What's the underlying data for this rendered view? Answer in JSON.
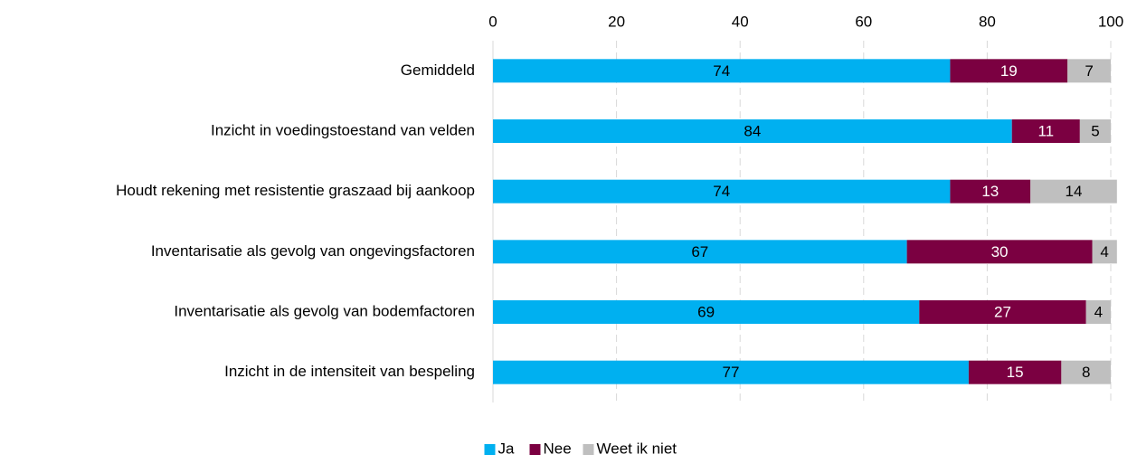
{
  "chart_data": {
    "type": "bar",
    "orientation": "horizontal",
    "stacked": true,
    "categories": [
      "Gemiddeld",
      "Inzicht in voedingstoestand van velden",
      "Houdt rekening met resistentie graszaad bij aankoop",
      "Inventarisatie als gevolg van ongevingsfactoren",
      "Inventarisatie als gevolg van bodemfactoren",
      "Inzicht in de intensiteit van bespeling"
    ],
    "series": [
      {
        "name": "Ja",
        "color": "#00b0f0",
        "values": [
          74,
          84,
          74,
          67,
          69,
          77
        ]
      },
      {
        "name": "Nee",
        "color": "#7b0041",
        "values": [
          19,
          11,
          13,
          30,
          27,
          15
        ]
      },
      {
        "name": "Weet ik niet",
        "color": "#bfbfbf",
        "values": [
          7,
          5,
          14,
          4,
          4,
          8
        ]
      }
    ],
    "xlim": [
      0,
      100
    ],
    "xticks": [
      0,
      20,
      40,
      60,
      80,
      100
    ],
    "grid": true,
    "legend": "bottom"
  }
}
